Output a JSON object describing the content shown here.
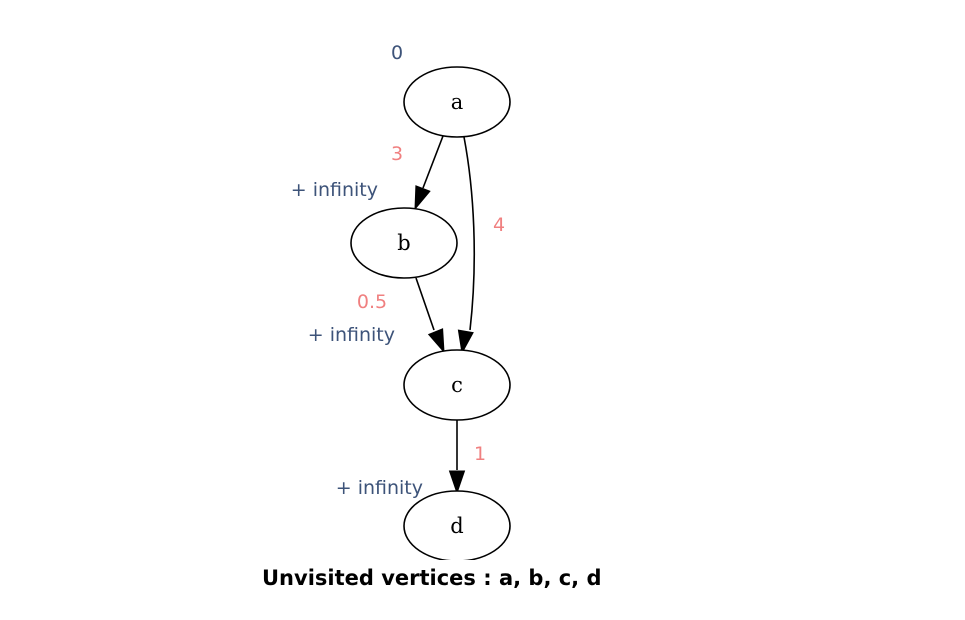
{
  "colors": {
    "distance_label": "#3d5379",
    "weight_label": "#f08080",
    "node_stroke": "#000000",
    "edge_stroke": "#000000"
  },
  "nodes": [
    {
      "id": "a",
      "label": "a",
      "distance": "0"
    },
    {
      "id": "b",
      "label": "b",
      "distance": "+ infinity"
    },
    {
      "id": "c",
      "label": "c",
      "distance": "+ infinity"
    },
    {
      "id": "d",
      "label": "d",
      "distance": "+ infinity"
    }
  ],
  "edges": [
    {
      "from": "a",
      "to": "b",
      "weight": "3"
    },
    {
      "from": "a",
      "to": "c",
      "weight": "4"
    },
    {
      "from": "b",
      "to": "c",
      "weight": "0.5"
    },
    {
      "from": "c",
      "to": "d",
      "weight": "1"
    }
  ],
  "caption": {
    "prefix": "Unvisited vertices : ",
    "vertices": "a, b, c, d"
  }
}
